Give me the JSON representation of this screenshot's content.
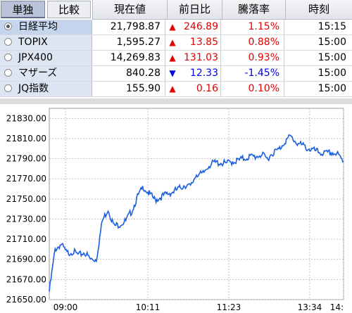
{
  "tabs": [
    {
      "label": "単独",
      "selected": true
    },
    {
      "label": "比較",
      "selected": false
    }
  ],
  "columns": {
    "price": "現在値",
    "change": "前日比",
    "pct": "騰落率",
    "time": "時刻"
  },
  "rows": [
    {
      "name": "日経平均",
      "price": "21,798.87",
      "direction": "up",
      "arrow": "▲",
      "change": "246.89",
      "pct": "1.15%",
      "time": "15:15",
      "selected": true
    },
    {
      "name": "TOPIX",
      "price": "1,595.27",
      "direction": "up",
      "arrow": "▲",
      "change": "13.85",
      "pct": "0.88%",
      "time": "15:00",
      "selected": false
    },
    {
      "name": "JPX400",
      "price": "14,269.83",
      "direction": "up",
      "arrow": "▲",
      "change": "131.03",
      "pct": "0.93%",
      "time": "15:00",
      "selected": false
    },
    {
      "name": "マザーズ",
      "price": "840.28",
      "direction": "down",
      "arrow": "▼",
      "change": "12.33",
      "pct": "-1.45%",
      "time": "15:00",
      "selected": false
    },
    {
      "name": "JQ指数",
      "price": "155.90",
      "direction": "up",
      "arrow": "▲",
      "change": "0.16",
      "pct": "0.10%",
      "time": "15:00",
      "selected": false
    }
  ],
  "colors": {
    "up": "#e60000",
    "down": "#0000e6",
    "line": "#1a5fe0",
    "grid": "#c0c0c0"
  },
  "chart_data": {
    "type": "line",
    "ylim": [
      21650,
      21840
    ],
    "yticks": [
      "21830.00",
      "21810.00",
      "21790.00",
      "21770.00",
      "21750.00",
      "21730.00",
      "21710.00",
      "21690.00",
      "21670.00",
      "21650.00"
    ],
    "xticks": [
      "09:00",
      "10:11",
      "11:23",
      "13:34",
      "14:"
    ],
    "x": [
      0,
      0.02,
      0.04,
      0.06,
      0.08,
      0.1,
      0.12,
      0.14,
      0.16,
      0.18,
      0.2,
      0.22,
      0.24,
      0.26,
      0.28,
      0.3,
      0.32,
      0.34,
      0.36,
      0.38,
      0.4,
      0.42,
      0.44,
      0.46,
      0.48,
      0.5,
      0.52,
      0.54,
      0.56,
      0.58,
      0.6,
      0.62,
      0.64,
      0.66,
      0.68,
      0.7,
      0.72,
      0.74,
      0.76,
      0.78,
      0.8,
      0.82,
      0.84,
      0.86,
      0.88,
      0.9,
      0.92,
      0.94,
      0.96,
      0.98,
      1.0
    ],
    "series": [
      {
        "values": [
          21658,
          21700,
          21705,
          21696,
          21698,
          21694,
          21697,
          21690,
          21690,
          21728,
          21740,
          21723,
          21725,
          21728,
          21738,
          21752,
          21762,
          21755,
          21749,
          21752,
          21755,
          21757,
          21760,
          21764,
          21762,
          21775,
          21774,
          21783,
          21786,
          21786,
          21785,
          21787,
          21788,
          21790,
          21792,
          21792,
          21794,
          21790,
          21796,
          21799,
          21807,
          21812,
          21806,
          21803,
          21800,
          21798,
          21796,
          21795,
          21796,
          21794,
          21787
        ]
      }
    ]
  }
}
